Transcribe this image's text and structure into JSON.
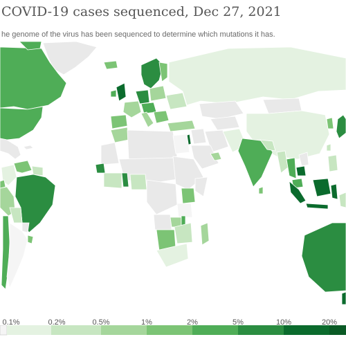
{
  "title": "COVID-19 cases sequenced, Dec 27, 2021",
  "subtitle": "he genome of the virus has been sequenced to determine which mutations it has.",
  "legend": {
    "labels": [
      "0.1%",
      "0.2%",
      "0.5%",
      "1%",
      "2%",
      "5%",
      "10%",
      "20%"
    ],
    "colors": [
      "#f5f5f5",
      "#e4f2e1",
      "#c7e6c1",
      "#a5d69b",
      "#7cc475",
      "#4fad57",
      "#2b8d41",
      "#0b6b2d",
      "#0a5a25"
    ]
  },
  "colors": {
    "no_data": "#e9e9e9",
    "c1": "#e4f2e1",
    "c2": "#c7e6c1",
    "c3": "#a5d69b",
    "c4": "#7cc475",
    "c5": "#4fad57",
    "c6": "#2b8d41",
    "c7": "#0b6b2d"
  }
}
